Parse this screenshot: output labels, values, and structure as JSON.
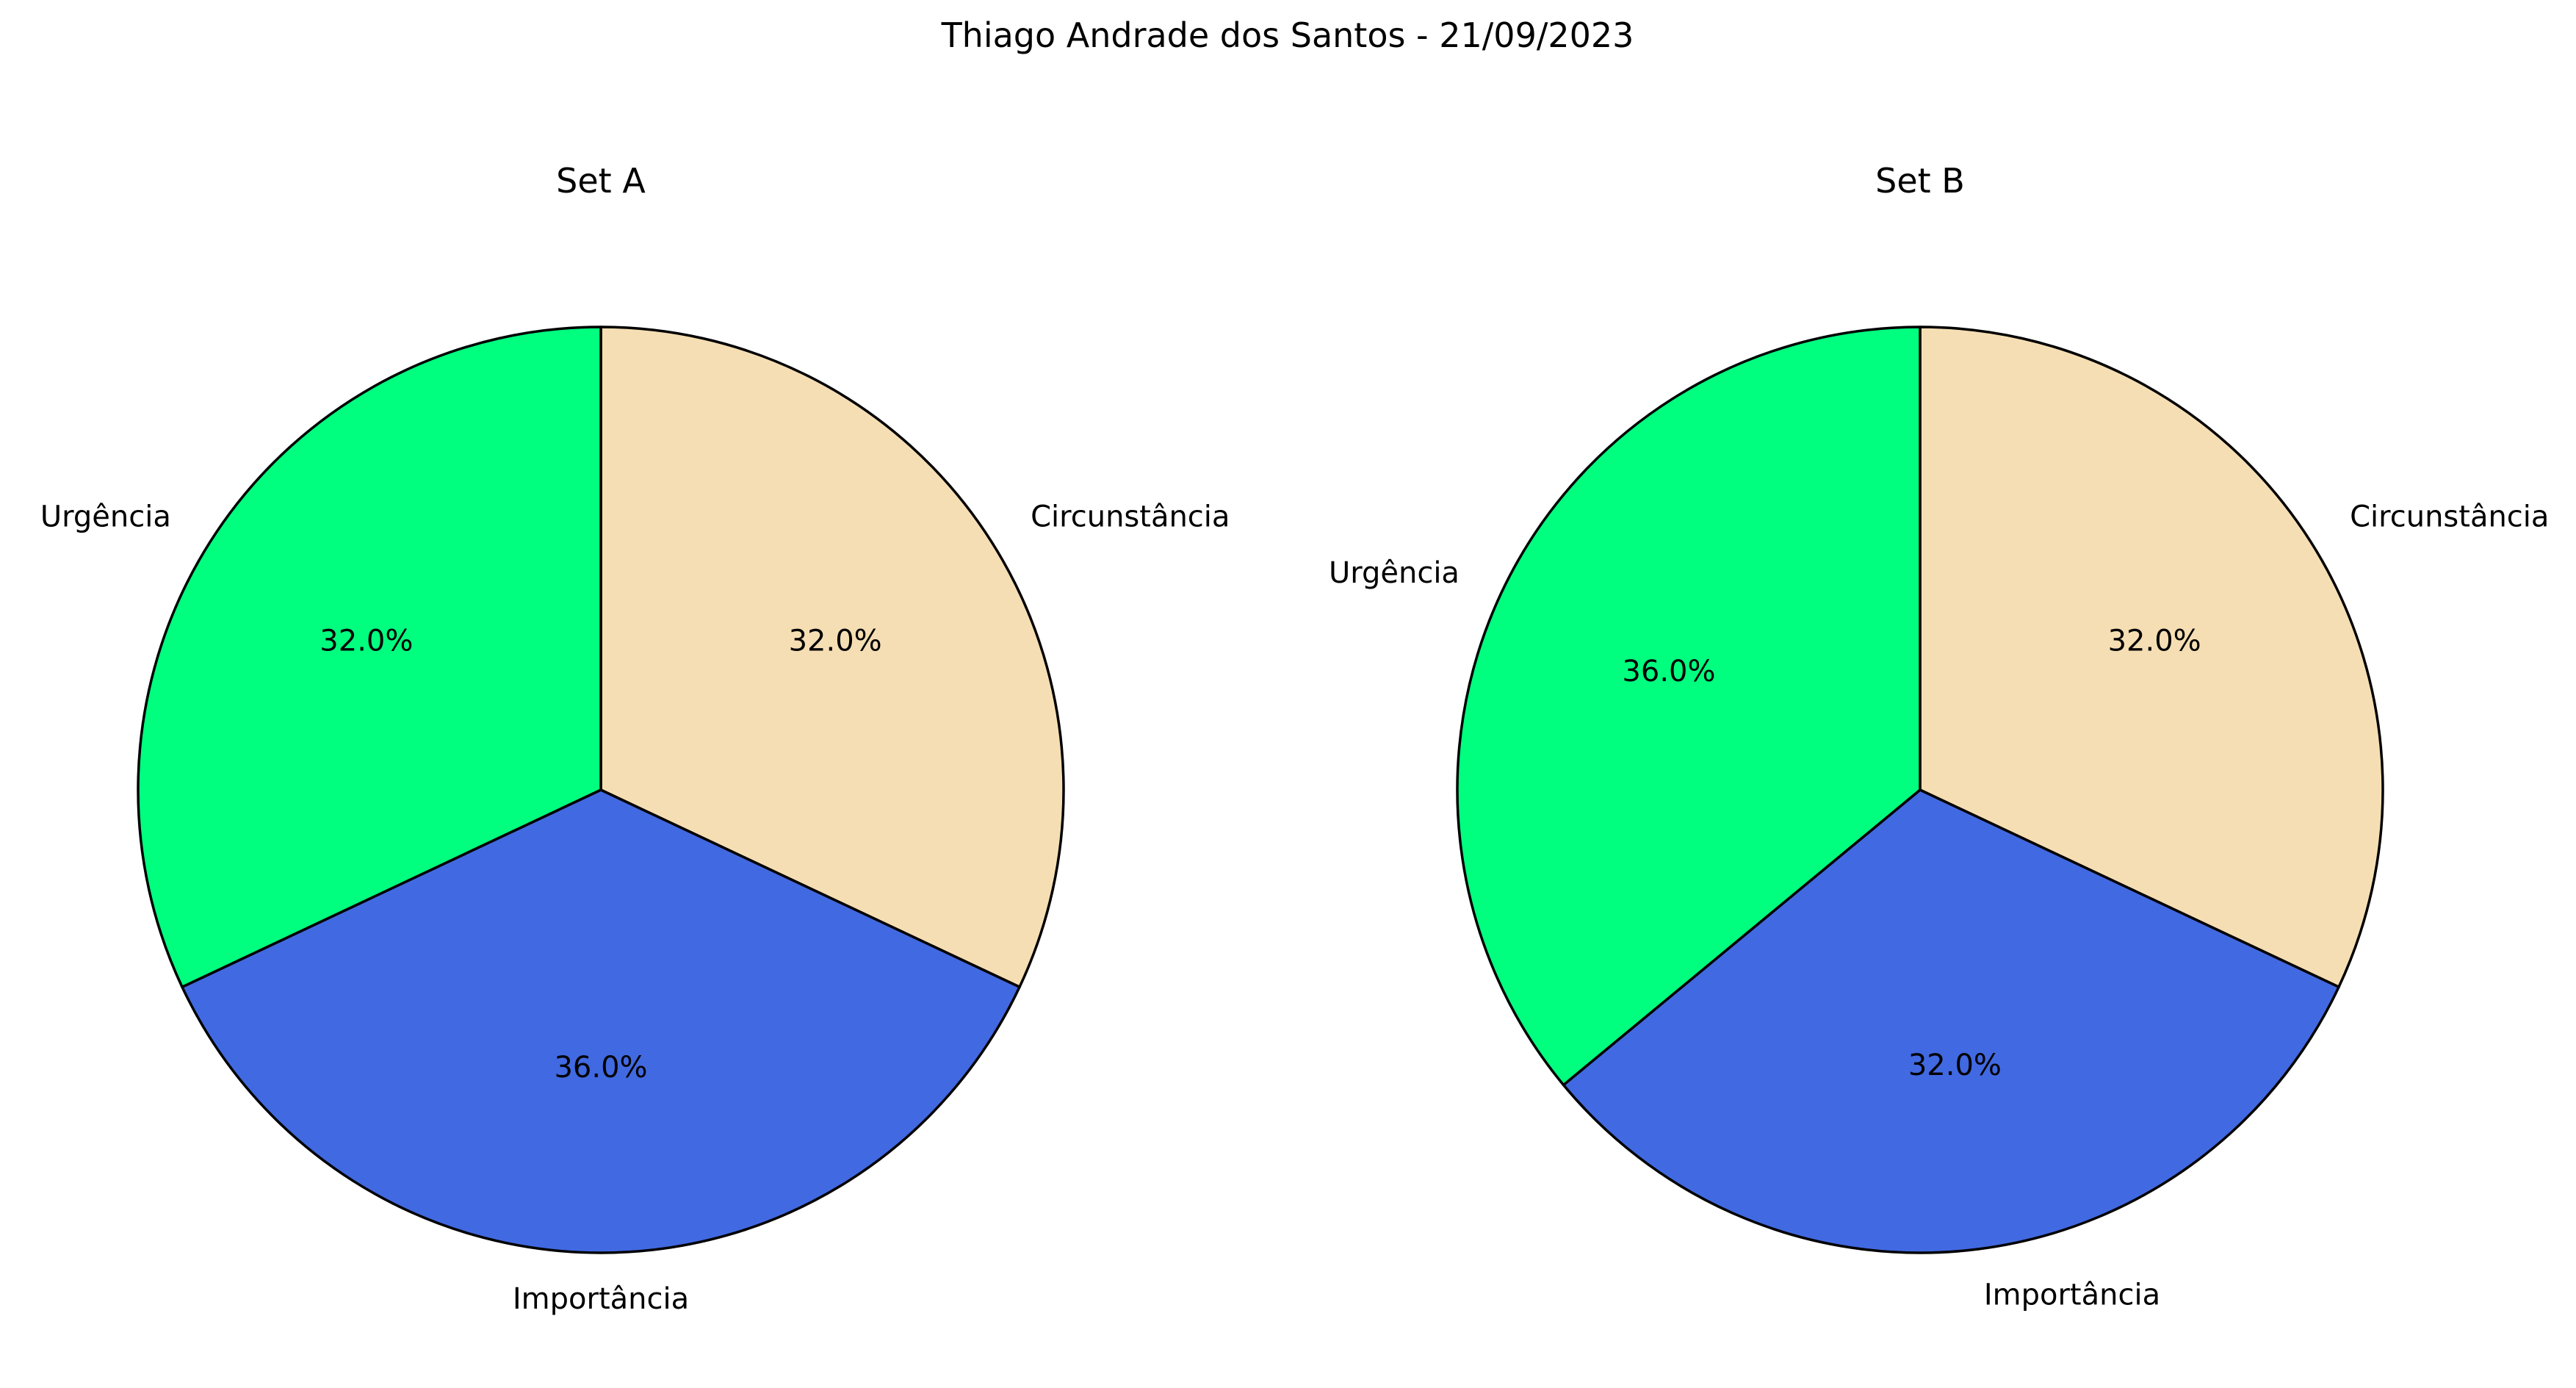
{
  "figure_title": "Thiago Andrade dos Santos - 21/09/2023",
  "chart_data": [
    {
      "type": "pie",
      "title": "Set A",
      "labels": [
        "Circunstância",
        "Importância",
        "Urgência"
      ],
      "values": [
        32.0,
        36.0,
        32.0
      ],
      "pct_labels": [
        "32.0%",
        "36.0%",
        "32.0%"
      ],
      "colors": [
        "#F5DEB3",
        "#4169E1",
        "#00FF7F"
      ],
      "start_angle_deg": 90,
      "direction": "clockwise",
      "edge_color": "#000000"
    },
    {
      "type": "pie",
      "title": "Set B",
      "labels": [
        "Circunstância",
        "Importância",
        "Urgência"
      ],
      "values": [
        32.0,
        32.0,
        36.0
      ],
      "pct_labels": [
        "32.0%",
        "32.0%",
        "36.0%"
      ],
      "colors": [
        "#F5DEB3",
        "#4169E1",
        "#00FF7F"
      ],
      "start_angle_deg": 90,
      "direction": "clockwise",
      "edge_color": "#000000"
    }
  ]
}
